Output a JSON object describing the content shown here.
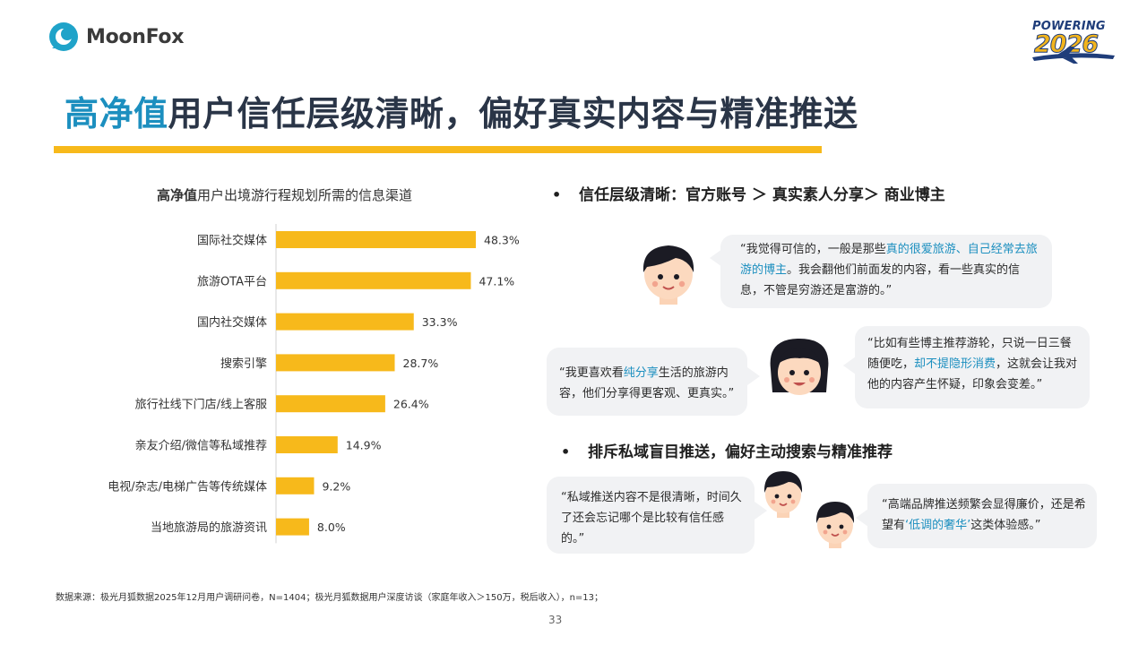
{
  "brand": {
    "logo_name": "MoonFox",
    "logo_color": "#1fa3c9",
    "event_line1": "POWERING",
    "event_line2": "2026"
  },
  "title": {
    "highlight": "高净值",
    "rest": "用户信任层级清晰，偏好真实内容与精准推送",
    "highlight_color": "#1c8fbf",
    "bar_color": "#f7b91b"
  },
  "chart_data": {
    "type": "bar",
    "orientation": "horizontal",
    "title_bold": "高净值",
    "title_rest": "用户出境游行程规划所需的信息渠道",
    "categories": [
      "国际社交媒体",
      "旅游OTA平台",
      "国内社交媒体",
      "搜索引擎",
      "旅行社线下门店/线上客服",
      "亲友介绍/微信等私域推荐",
      "电视/杂志/电梯广告等传统媒体",
      "当地旅游局的旅游资讯"
    ],
    "values": [
      48.3,
      47.1,
      33.3,
      28.7,
      26.4,
      14.9,
      9.2,
      8.0
    ],
    "value_labels": [
      "48.3%",
      "47.1%",
      "33.3%",
      "28.7%",
      "26.4%",
      "14.9%",
      "9.2%",
      "8.0%"
    ],
    "xlim": [
      0,
      100
    ],
    "bar_color": "#f7b91b",
    "grid": false,
    "legend": "none"
  },
  "section1": {
    "bullet": "•",
    "heading": "信任层级清晰：官方账号 ＞ 真实素人分享＞ 商业博主",
    "quote1": {
      "pre": "“我觉得可信的，一般是那些",
      "hl": "真的很爱旅游、自己经常去旅游的博主",
      "post": "。我会翻他们前面发的内容，看一些真实的信息，不管是穷游还是富游的。”"
    },
    "quote2": {
      "pre": "“我更喜欢看",
      "hl": "纯分享",
      "post": "生活的旅游内容，他们分享得更客观、更真实。”"
    },
    "quote3": {
      "pre": "“比如有些博主推荐游轮，只说一日三餐随便吃，",
      "hl": "却不提隐形消费",
      "post": "，这就会让我对他的内容产生怀疑，印象会变差。”"
    }
  },
  "section2": {
    "bullet": "•",
    "heading": "排斥私域盲目推送，偏好主动搜索与精准推荐",
    "quote4": {
      "text": "“私域推送内容不是很清晰，时间久了还会忘记哪个是比较有信任感的。”"
    },
    "quote5": {
      "pre": "“高端品牌推送频繁会显得廉价，还是希望有",
      "hl": "‘低调的奢华’",
      "post": "这类体验感。”"
    }
  },
  "footer": {
    "source": "数据来源：极光月狐数据2025年12月用户调研问卷，N=1404；极光月狐数据用户深度访谈（家庭年收入＞150万，税后收入），n=13；",
    "page": "33"
  }
}
